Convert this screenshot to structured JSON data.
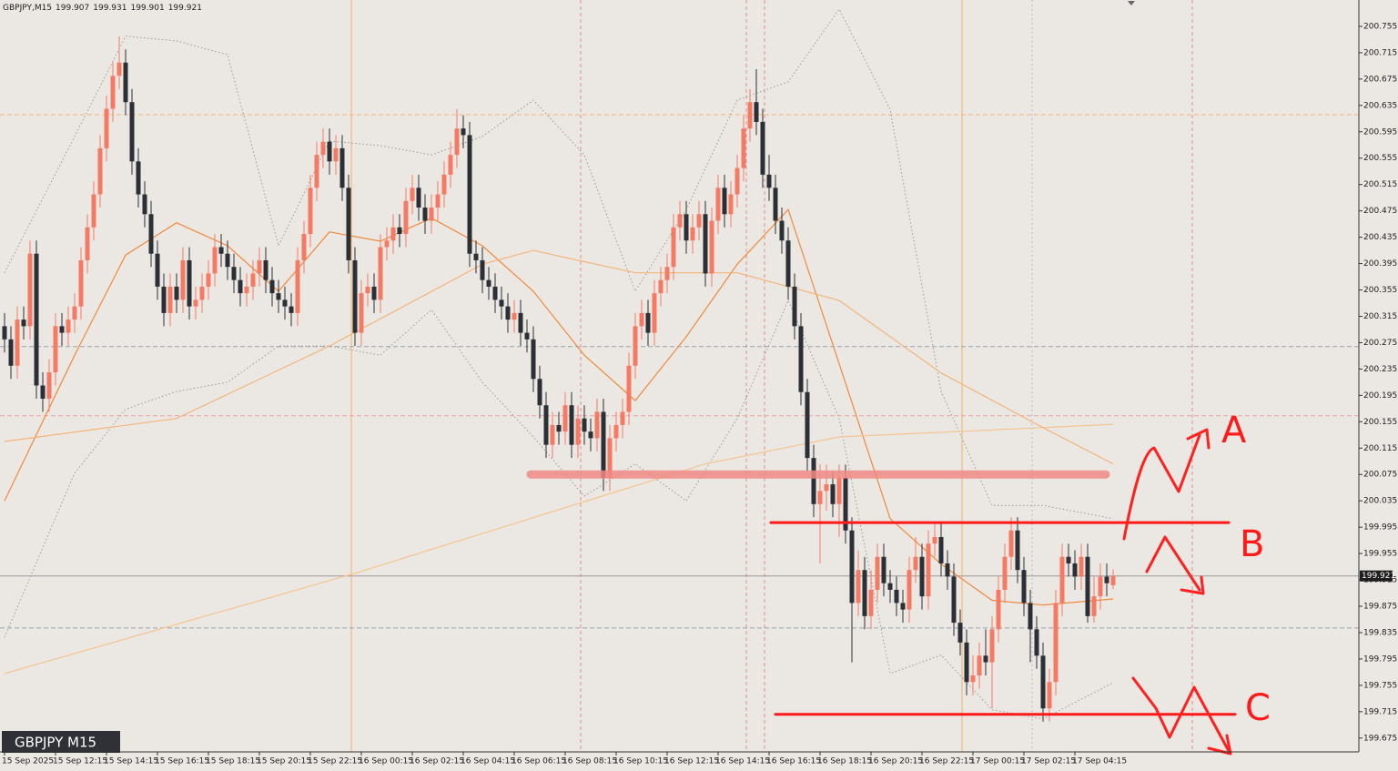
{
  "chart_data": {
    "type": "candlestick",
    "symbol": "GBPJPY,M15",
    "watermark": "GBPJPY M15",
    "bull_color": "#f47a64",
    "bear_color": "#2b2f36",
    "categories": [
      "15 Sep 2025",
      null,
      null,
      null,
      null,
      null,
      null,
      null,
      "15 Sep 12:15",
      null,
      null,
      null,
      null,
      null,
      null,
      null,
      "15 Sep 14:15",
      null,
      null,
      null,
      null,
      null,
      null,
      null,
      "15 Sep 16:15",
      null,
      null,
      null,
      null,
      null,
      null,
      null,
      "15 Sep 18:15",
      null,
      null,
      null,
      null,
      null,
      null,
      null,
      "15 Sep 20:15",
      null,
      null,
      null,
      null,
      null,
      null,
      null,
      "15 Sep 22:15",
      null,
      null,
      null,
      null,
      null,
      null,
      null,
      "16 Sep 00:15",
      null,
      null,
      null,
      null,
      null,
      null,
      null,
      "16 Sep 02:15",
      null,
      null,
      null,
      null,
      null,
      null,
      null,
      "16 Sep 04:15",
      null,
      null,
      null,
      null,
      null,
      null,
      null,
      "16 Sep 06:15",
      null,
      null,
      null,
      null,
      null,
      null,
      null,
      "16 Sep 08:15",
      null,
      null,
      null,
      null,
      null,
      null,
      null,
      "16 Sep 10:15",
      null,
      null,
      null,
      null,
      null,
      null,
      null,
      "16 Sep 12:15",
      null,
      null,
      null,
      null,
      null,
      null,
      null,
      "16 Sep 14:15",
      null,
      null,
      null,
      null,
      null,
      null,
      null,
      "16 Sep 16:15",
      null,
      null,
      null,
      null,
      null,
      null,
      null,
      "16 Sep 18:15",
      null,
      null,
      null,
      null,
      null,
      null,
      null,
      "16 Sep 20:15",
      null,
      null,
      null,
      null,
      null,
      null,
      null,
      "16 Sep 22:15",
      null,
      null,
      null,
      null,
      null,
      null,
      null,
      "17 Sep 00:15",
      null,
      null,
      null,
      null,
      null,
      null,
      null,
      "17 Sep 02:15",
      null,
      null,
      null,
      null,
      null,
      null,
      null,
      "17 Sep 04:15",
      null,
      null,
      null,
      null,
      null,
      null
    ],
    "open": [
      200.3,
      200.28,
      200.24,
      200.31,
      200.3,
      200.41,
      200.21,
      200.19,
      200.23,
      200.3,
      200.29,
      200.31,
      200.33,
      200.4,
      200.45,
      200.5,
      200.57,
      200.63,
      200.68,
      200.7,
      200.64,
      200.55,
      200.5,
      200.47,
      200.41,
      200.36,
      200.32,
      200.36,
      200.34,
      200.4,
      200.33,
      200.34,
      200.36,
      200.38,
      200.42,
      200.41,
      200.39,
      200.37,
      200.35,
      200.36,
      200.38,
      200.4,
      200.37,
      200.35,
      200.34,
      200.33,
      200.32,
      200.4,
      200.44,
      200.51,
      200.56,
      200.58,
      200.55,
      200.57,
      200.51,
      200.4,
      200.29,
      200.35,
      200.36,
      200.34,
      200.42,
      200.43,
      200.45,
      200.44,
      200.49,
      200.51,
      200.48,
      200.46,
      200.48,
      200.5,
      200.53,
      200.56,
      200.6,
      200.59,
      200.41,
      200.4,
      200.37,
      200.36,
      200.34,
      200.33,
      200.31,
      200.32,
      200.29,
      200.28,
      200.22,
      200.18,
      200.12,
      200.15,
      200.14,
      200.18,
      200.12,
      200.16,
      200.14,
      200.13,
      200.17,
      200.07,
      200.13,
      200.15,
      200.17,
      200.24,
      200.3,
      200.32,
      200.29,
      200.35,
      200.37,
      200.39,
      200.45,
      200.47,
      200.43,
      200.45,
      200.47,
      200.38,
      200.46,
      200.51,
      200.47,
      200.5,
      200.54,
      200.6,
      200.64,
      200.61,
      200.53,
      200.51,
      200.46,
      200.43,
      200.36,
      200.3,
      200.2,
      200.1,
      200.03,
      200.05,
      200.06,
      200.03,
      200.07,
      199.99,
      199.88,
      199.93,
      199.86,
      199.9,
      199.95,
      199.91,
      199.9,
      199.88,
      199.87,
      199.93,
      199.95,
      199.89,
      199.97,
      199.98,
      199.94,
      199.92,
      199.85,
      199.82,
      199.76,
      199.77,
      199.8,
      199.79,
      199.84,
      199.9,
      199.95,
      199.99,
      199.93,
      199.88,
      199.84,
      199.8,
      199.72,
      199.76,
      199.88,
      199.95,
      199.94,
      199.92,
      199.95,
      199.86,
      199.89,
      199.92,
      199.907
    ],
    "high": [
      200.32,
      200.3,
      200.33,
      200.33,
      200.43,
      200.43,
      200.23,
      200.25,
      200.32,
      200.32,
      200.33,
      200.35,
      200.42,
      200.47,
      200.52,
      200.59,
      200.65,
      200.7,
      200.74,
      200.72,
      200.66,
      200.57,
      200.52,
      200.49,
      200.43,
      200.38,
      200.38,
      200.38,
      200.42,
      200.42,
      200.36,
      200.38,
      200.4,
      200.44,
      200.44,
      200.43,
      200.41,
      200.39,
      200.38,
      200.4,
      200.42,
      200.42,
      200.39,
      200.37,
      200.36,
      200.35,
      200.42,
      200.46,
      200.53,
      200.58,
      200.6,
      200.6,
      200.59,
      200.59,
      200.53,
      200.42,
      200.37,
      200.38,
      200.38,
      200.44,
      200.45,
      200.47,
      200.47,
      200.51,
      200.53,
      200.53,
      200.5,
      200.5,
      200.52,
      200.55,
      200.58,
      200.63,
      200.62,
      200.61,
      200.43,
      200.42,
      200.39,
      200.38,
      200.36,
      200.35,
      200.34,
      200.34,
      200.31,
      200.3,
      200.24,
      200.2,
      200.17,
      200.17,
      200.2,
      200.2,
      200.18,
      200.18,
      200.16,
      200.19,
      200.19,
      200.15,
      200.17,
      200.19,
      200.26,
      200.32,
      200.34,
      200.34,
      200.37,
      200.39,
      200.41,
      200.47,
      200.49,
      200.49,
      200.47,
      200.49,
      200.49,
      200.48,
      200.53,
      200.53,
      200.52,
      200.56,
      200.62,
      200.66,
      200.69,
      200.63,
      200.56,
      200.53,
      200.48,
      200.45,
      200.38,
      200.32,
      200.22,
      200.12,
      200.09,
      200.09,
      200.08,
      200.09,
      200.09,
      200.01,
      199.96,
      199.95,
      199.93,
      199.97,
      199.97,
      199.93,
      199.92,
      199.9,
      199.95,
      199.98,
      199.97,
      199.99,
      200.0,
      200.0,
      199.96,
      199.94,
      199.87,
      199.84,
      199.8,
      199.82,
      199.84,
      199.86,
      199.92,
      199.97,
      200.01,
      200.01,
      199.95,
      199.9,
      199.86,
      199.82,
      199.78,
      199.9,
      199.97,
      199.97,
      199.96,
      199.97,
      199.97,
      199.92,
      199.94,
      199.94,
      199.931
    ],
    "low": [
      200.26,
      200.22,
      200.22,
      200.28,
      200.28,
      200.19,
      200.17,
      200.17,
      200.21,
      200.27,
      200.27,
      200.29,
      200.31,
      200.38,
      200.43,
      200.48,
      200.55,
      200.61,
      200.66,
      200.62,
      200.53,
      200.48,
      200.45,
      200.39,
      200.34,
      200.3,
      200.3,
      200.32,
      200.32,
      200.31,
      200.31,
      200.32,
      200.34,
      200.36,
      200.39,
      200.37,
      200.35,
      200.33,
      200.33,
      200.34,
      200.36,
      200.35,
      200.33,
      200.32,
      200.31,
      200.3,
      200.3,
      200.38,
      200.42,
      200.49,
      200.54,
      200.53,
      200.53,
      200.49,
      200.38,
      200.27,
      200.27,
      200.33,
      200.32,
      200.32,
      200.4,
      200.41,
      200.42,
      200.42,
      200.47,
      200.46,
      200.44,
      200.44,
      200.46,
      200.48,
      200.51,
      200.54,
      200.57,
      200.39,
      200.38,
      200.35,
      200.34,
      200.32,
      200.31,
      200.29,
      200.29,
      200.27,
      200.26,
      200.2,
      200.16,
      200.1,
      200.1,
      200.12,
      200.12,
      200.1,
      200.1,
      200.12,
      200.11,
      200.11,
      200.05,
      200.05,
      200.11,
      200.13,
      200.15,
      200.22,
      200.28,
      200.27,
      200.27,
      200.33,
      200.35,
      200.37,
      200.43,
      200.41,
      200.41,
      200.43,
      200.36,
      200.36,
      200.44,
      200.45,
      200.45,
      200.48,
      200.52,
      200.58,
      200.59,
      200.51,
      200.49,
      200.44,
      200.41,
      200.34,
      200.28,
      200.18,
      200.08,
      200.01,
      199.94,
      200.02,
      200.01,
      199.98,
      199.97,
      199.79,
      199.86,
      199.84,
      199.84,
      199.88,
      199.89,
      199.88,
      199.86,
      199.85,
      199.85,
      199.91,
      199.87,
      199.87,
      199.95,
      199.92,
      199.9,
      199.83,
      199.8,
      199.74,
      199.74,
      199.75,
      199.77,
      199.72,
      199.82,
      199.88,
      199.93,
      199.91,
      199.86,
      199.79,
      199.78,
      199.7,
      199.7,
      199.74,
      199.86,
      199.92,
      199.9,
      199.9,
      199.85,
      199.85,
      199.87,
      199.89,
      199.901
    ],
    "close": [
      200.28,
      200.24,
      200.31,
      200.3,
      200.41,
      200.21,
      200.19,
      200.23,
      200.3,
      200.29,
      200.31,
      200.33,
      200.4,
      200.45,
      200.5,
      200.57,
      200.63,
      200.68,
      200.7,
      200.64,
      200.55,
      200.5,
      200.47,
      200.41,
      200.36,
      200.32,
      200.36,
      200.34,
      200.4,
      200.33,
      200.34,
      200.36,
      200.38,
      200.42,
      200.41,
      200.39,
      200.37,
      200.35,
      200.36,
      200.38,
      200.4,
      200.37,
      200.35,
      200.34,
      200.33,
      200.32,
      200.4,
      200.44,
      200.51,
      200.56,
      200.58,
      200.55,
      200.57,
      200.51,
      200.4,
      200.29,
      200.35,
      200.36,
      200.34,
      200.42,
      200.43,
      200.45,
      200.44,
      200.49,
      200.51,
      200.48,
      200.46,
      200.48,
      200.5,
      200.53,
      200.56,
      200.6,
      200.59,
      200.41,
      200.4,
      200.37,
      200.36,
      200.34,
      200.33,
      200.31,
      200.32,
      200.29,
      200.28,
      200.22,
      200.18,
      200.12,
      200.15,
      200.14,
      200.18,
      200.12,
      200.16,
      200.14,
      200.13,
      200.17,
      200.07,
      200.13,
      200.15,
      200.17,
      200.24,
      200.3,
      200.32,
      200.29,
      200.35,
      200.37,
      200.39,
      200.45,
      200.47,
      200.43,
      200.45,
      200.47,
      200.38,
      200.46,
      200.51,
      200.47,
      200.5,
      200.54,
      200.6,
      200.64,
      200.61,
      200.53,
      200.51,
      200.46,
      200.43,
      200.36,
      200.3,
      200.2,
      200.1,
      200.03,
      200.05,
      200.06,
      200.03,
      200.07,
      199.99,
      199.88,
      199.93,
      199.86,
      199.9,
      199.95,
      199.91,
      199.9,
      199.88,
      199.87,
      199.93,
      199.95,
      199.89,
      199.97,
      199.98,
      199.94,
      199.92,
      199.85,
      199.82,
      199.76,
      199.77,
      199.8,
      199.79,
      199.84,
      199.9,
      199.95,
      199.99,
      199.93,
      199.88,
      199.84,
      199.8,
      199.72,
      199.76,
      199.88,
      199.95,
      199.94,
      199.92,
      199.95,
      199.86,
      199.89,
      199.92,
      199.91,
      199.921
    ],
    "overlays": [
      {
        "color": "#9a9a9a",
        "style": "dotted",
        "x": [
          0,
          11,
          19,
          27,
          35,
          43,
          51,
          59,
          67,
          75,
          83,
          91,
          99,
          107,
          115,
          123,
          131,
          139,
          147,
          155,
          163,
          174
        ],
        "values": [
          200.381,
          200.588,
          200.74,
          200.733,
          200.712,
          200.422,
          200.581,
          200.574,
          200.56,
          200.588,
          200.643,
          200.56,
          200.353,
          200.477,
          200.643,
          200.671,
          200.781,
          200.629,
          200.201,
          200.028,
          200.028,
          200.008
        ]
      },
      {
        "color": "#9a9a9a",
        "style": "dotted",
        "x": [
          0,
          11,
          19,
          27,
          35,
          43,
          51,
          59,
          67,
          75,
          83,
          91,
          99,
          107,
          115,
          123,
          131,
          139,
          147,
          155,
          163,
          174
        ],
        "values": [
          199.828,
          200.077,
          200.174,
          200.201,
          200.215,
          200.27,
          200.27,
          200.256,
          200.325,
          200.215,
          200.132,
          200.042,
          200.091,
          200.035,
          200.16,
          200.339,
          200.16,
          199.773,
          199.801,
          199.718,
          199.704,
          199.759
        ]
      },
      {
        "color": "#f08a3c",
        "style": "solid",
        "x": [
          0,
          11,
          19,
          27,
          35,
          43,
          51,
          59,
          67,
          75,
          83,
          91,
          99,
          107,
          115,
          123,
          131,
          139,
          147,
          155,
          163,
          174
        ],
        "values": [
          200.035,
          200.256,
          200.408,
          200.457,
          200.422,
          200.353,
          200.443,
          200.429,
          200.464,
          200.422,
          200.353,
          200.256,
          200.187,
          200.284,
          200.394,
          200.477,
          200.243,
          200.008,
          199.939,
          199.884,
          199.877,
          199.886
        ]
      },
      {
        "color": "#f5c48f",
        "style": "solid",
        "x": [
          0,
          55,
          110,
          131,
          174
        ],
        "values": [
          199.773,
          199.925,
          200.091,
          200.132,
          200.151
        ]
      },
      {
        "color": "#f3b57a",
        "style": "solid",
        "x": [
          0,
          27,
          51,
          75,
          83,
          99,
          115,
          131,
          147,
          163,
          174
        ],
        "values": [
          200.125,
          200.16,
          200.27,
          200.394,
          200.415,
          200.381,
          200.381,
          200.339,
          200.229,
          200.146,
          200.091
        ]
      }
    ],
    "levels": [
      {
        "value": 200.621,
        "color": "#f2b77c"
      },
      {
        "value": 200.269,
        "color": "#9aa3b0"
      },
      {
        "value": 200.164,
        "color": "#e8a4a4"
      },
      {
        "value": 199.842,
        "color": "#9aa3b0"
      }
    ],
    "drawings": [
      {
        "value": 200.075,
        "color": "#f08a84"
      },
      {
        "value": 200.002,
        "color": "#ff1a1a"
      },
      {
        "value": 199.711,
        "color": "#ff1a1a"
      }
    ],
    "annotations": {
      "color": "#ff1a1a",
      "texts": [
        "A",
        "B",
        "C"
      ]
    },
    "ylim": [
      199.654,
      200.795
    ],
    "yticks": [
      200.755,
      200.715,
      200.675,
      200.635,
      200.595,
      200.555,
      200.515,
      200.475,
      200.435,
      200.395,
      200.355,
      200.315,
      200.275,
      200.235,
      200.195,
      200.155,
      200.115,
      200.075,
      200.035,
      199.995,
      199.955,
      199.915,
      199.875,
      199.835,
      199.795,
      199.755,
      199.715,
      199.675
    ]
  }
}
